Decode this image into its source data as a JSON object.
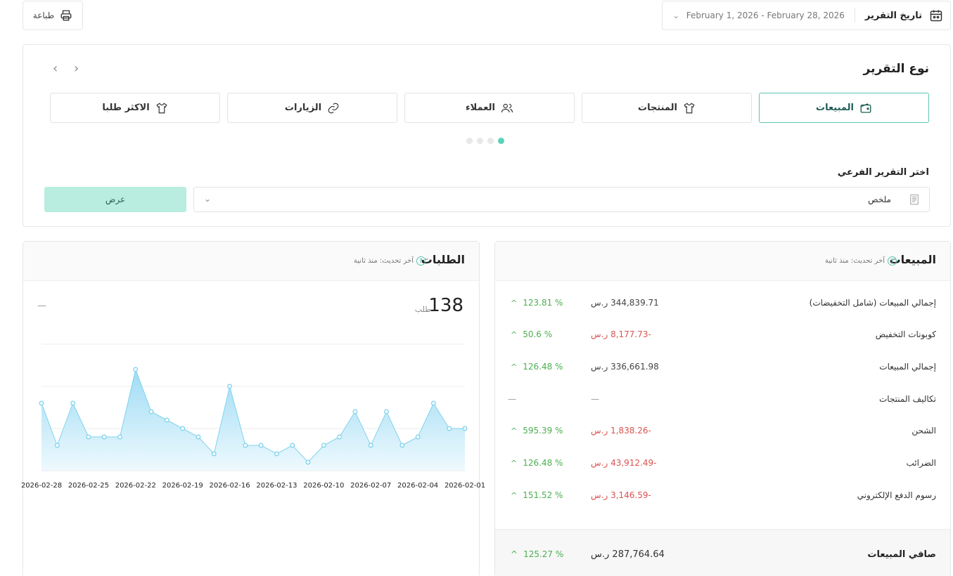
{
  "top": {
    "print_label": "طباعة",
    "date_label": "تاريخ التقرير",
    "date_range": "February 1, 2026 - February 28, 2026"
  },
  "report": {
    "title": "نوع التقرير",
    "tabs": [
      {
        "label": "المبيعات",
        "icon": "wallet-icon",
        "active": true
      },
      {
        "label": "المنتجات",
        "icon": "shirt-icon",
        "active": false
      },
      {
        "label": "العملاء",
        "icon": "users-icon",
        "active": false
      },
      {
        "label": "الزيارات",
        "icon": "link-icon",
        "active": false
      },
      {
        "label": "الاكثر طلبا",
        "icon": "shirt-icon",
        "active": false
      }
    ],
    "sub_label": "اختر التقرير الفرعي",
    "sub_value": "ملخص",
    "show_label": "عرض"
  },
  "orders": {
    "title": "الطلبات",
    "updated": "آخر تحديث: منذ ثانية",
    "total": "138",
    "unit": "طلب",
    "dash": "—",
    "colors": {
      "line": "#7fd3ee",
      "fill_top": "#9fdcf5",
      "fill_bottom": "#eef9fd"
    }
  },
  "chart_data": {
    "type": "area",
    "x": [
      "2026-02-28",
      "2026-02-27",
      "2026-02-26",
      "2026-02-25",
      "2026-02-24",
      "2026-02-23",
      "2026-02-22",
      "2026-02-21",
      "2026-02-20",
      "2026-02-19",
      "2026-02-18",
      "2026-02-17",
      "2026-02-16",
      "2026-02-15",
      "2026-02-14",
      "2026-02-13",
      "2026-02-12",
      "2026-02-11",
      "2026-02-10",
      "2026-02-09",
      "2026-02-08",
      "2026-02-07",
      "2026-02-06",
      "2026-02-05",
      "2026-02-04",
      "2026-02-03",
      "2026-02-02",
      "2026-02-01"
    ],
    "tick_labels": [
      "2026-02-28",
      "2026-02-25",
      "2026-02-22",
      "2026-02-19",
      "2026-02-16",
      "2026-02-13",
      "2026-02-10",
      "2026-02-07",
      "2026-02-04",
      "2026-02-01"
    ],
    "series": [
      {
        "values": [
          8,
          3,
          8,
          4,
          4,
          4,
          12,
          7,
          6,
          5,
          4,
          2,
          10,
          3,
          3,
          2,
          3,
          1,
          3,
          4,
          7,
          3,
          7,
          3,
          4,
          8,
          5,
          5
        ]
      }
    ],
    "ylim": [
      0,
      15
    ],
    "grid": true
  },
  "sales": {
    "title": "المبيعات",
    "updated": "آخر تحديث: منذ ثانية",
    "rows": [
      {
        "name": "إجمالي المبيعات (شامل التخفيضات)",
        "amount": "344,839.71 ر.س",
        "pct": "123.81 %",
        "neg": false
      },
      {
        "name": "كوبونات التخفيض",
        "amount": "-8,177.73 ر.س",
        "pct": "50.6 %",
        "neg": true
      },
      {
        "name": "إجمالي المبيعات",
        "amount": "336,661.98 ر.س",
        "pct": "126.48 %",
        "neg": false
      },
      {
        "name": "تكاليف المنتجات",
        "amount": "—",
        "pct": "—",
        "neg": false,
        "empty": true
      },
      {
        "name": "الشحن",
        "amount": "-1,838.26 ر.س",
        "pct": "595.39 %",
        "neg": true
      },
      {
        "name": "الضرائب",
        "amount": "-43,912.49 ر.س",
        "pct": "126.48 %",
        "neg": true
      },
      {
        "name": "رسوم الدفع الإلكتروني",
        "amount": "-3,146.59 ر.س",
        "pct": "151.52 %",
        "neg": true
      }
    ],
    "net": {
      "name": "صافي المبيعات",
      "amount": "287,764.64 ر.س",
      "pct": "125.27 %"
    }
  }
}
